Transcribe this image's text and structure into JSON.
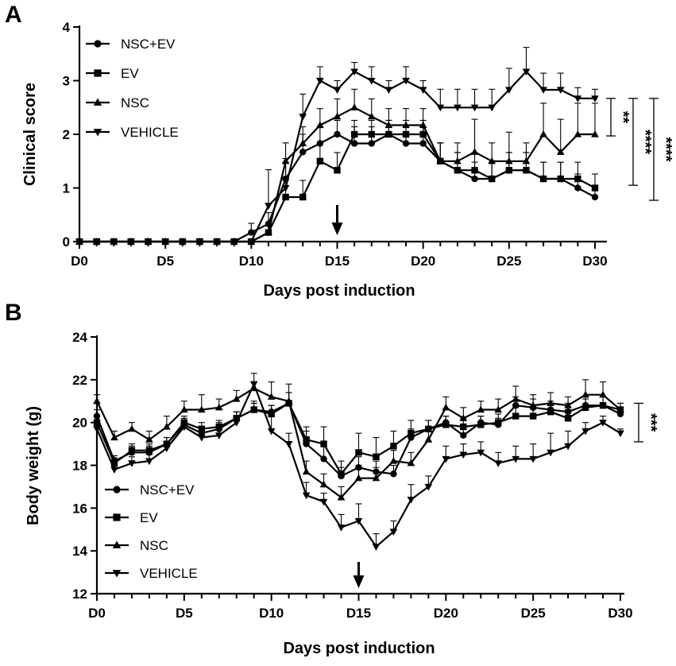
{
  "chart_data": [
    {
      "panel": "A",
      "type": "line",
      "xlabel": "Days post induction",
      "ylabel": "Clinical score",
      "xlim": [
        0,
        30
      ],
      "ylim": [
        0,
        4
      ],
      "x_ticks": [
        "D0",
        "D5",
        "D10",
        "D15",
        "D20",
        "D25",
        "D30"
      ],
      "y_ticks": [
        "0",
        "1",
        "2",
        "3",
        "4"
      ],
      "annotation": "treatment arrow at D15",
      "arrow_x": 15,
      "legend": [
        "NSC+EV",
        "EV",
        "NSC",
        "VEHICLE"
      ],
      "x": [
        0,
        1,
        2,
        3,
        4,
        5,
        6,
        7,
        8,
        9,
        10,
        11,
        12,
        13,
        14,
        15,
        16,
        17,
        18,
        19,
        20,
        21,
        22,
        23,
        24,
        25,
        26,
        27,
        28,
        29,
        30
      ],
      "series": [
        {
          "name": "NSC+EV",
          "marker": "circle",
          "values": [
            0,
            0,
            0,
            0,
            0,
            0,
            0,
            0,
            0,
            0,
            0.17,
            0.33,
            1.17,
            1.67,
            1.83,
            2.0,
            1.83,
            1.83,
            2.0,
            1.83,
            1.83,
            1.5,
            1.33,
            1.17,
            1.17,
            1.33,
            1.33,
            1.17,
            1.17,
            1.0,
            0.83
          ],
          "errors": [
            0,
            0,
            0,
            0,
            0,
            0,
            0,
            0,
            0,
            0,
            0.17,
            0.21,
            0.31,
            0.33,
            0.31,
            0.26,
            0.31,
            0.31,
            0.26,
            0.31,
            0.31,
            0.34,
            0.33,
            0.31,
            0.31,
            0.33,
            0.33,
            0.31,
            0.31,
            0.26,
            0.17
          ]
        },
        {
          "name": "EV",
          "marker": "square",
          "values": [
            0,
            0,
            0,
            0,
            0,
            0,
            0,
            0,
            0,
            0,
            0,
            0.17,
            0.83,
            0.83,
            1.5,
            1.33,
            2.0,
            2.0,
            2.0,
            2.0,
            2.0,
            1.5,
            1.33,
            1.33,
            1.17,
            1.33,
            1.33,
            1.17,
            1.17,
            1.17,
            1.0
          ],
          "errors": [
            0,
            0,
            0,
            0,
            0,
            0,
            0,
            0,
            0,
            0,
            0,
            0.17,
            0.31,
            0.31,
            0.34,
            0.33,
            0.26,
            0.26,
            0.26,
            0.26,
            0.26,
            0.34,
            0.33,
            0.33,
            0.31,
            0.33,
            0.33,
            0.31,
            0.31,
            0.31,
            0.26
          ]
        },
        {
          "name": "NSC",
          "marker": "triangle-up",
          "values": [
            0,
            0,
            0,
            0,
            0,
            0,
            0,
            0,
            0,
            0,
            0,
            0.17,
            1.5,
            1.83,
            2.17,
            2.33,
            2.5,
            2.33,
            2.17,
            2.17,
            2.17,
            1.5,
            1.5,
            1.67,
            1.5,
            1.5,
            1.5,
            2.0,
            1.67,
            2.0,
            2.0
          ],
          "errors": [
            0,
            0,
            0,
            0,
            0,
            0,
            0,
            0,
            0,
            0,
            0,
            0.17,
            0.34,
            0.31,
            0.31,
            0.33,
            0.34,
            0.33,
            0.31,
            0.31,
            0.31,
            0.34,
            0.34,
            0.61,
            0.34,
            0.54,
            0.34,
            0.58,
            0.61,
            0.58,
            0.58
          ]
        },
        {
          "name": "VEHICLE",
          "marker": "triangle-down",
          "values": [
            0,
            0,
            0,
            0,
            0,
            0,
            0,
            0,
            0,
            0,
            0,
            0.67,
            1.0,
            2.33,
            3.0,
            2.83,
            3.17,
            3.0,
            2.83,
            3.0,
            2.83,
            2.5,
            2.5,
            2.5,
            2.5,
            2.83,
            3.17,
            2.83,
            2.83,
            2.67,
            2.67
          ],
          "errors": [
            0,
            0,
            0,
            0,
            0,
            0,
            0,
            0,
            0,
            0,
            0,
            0.67,
            0.55,
            0.42,
            0.26,
            0.17,
            0.17,
            0.26,
            0.17,
            0.26,
            0.17,
            0.34,
            0.34,
            0.34,
            0.34,
            0.4,
            0.45,
            0.31,
            0.31,
            0.2,
            0.17
          ]
        }
      ],
      "significance": [
        {
          "label": "**",
          "y_top": 2.67,
          "y_bottom": 1.97
        },
        {
          "label": "****",
          "y_top": 2.67,
          "y_bottom": 1.05
        },
        {
          "label": "****",
          "y_top": 2.67,
          "y_bottom": 0.77
        }
      ]
    },
    {
      "panel": "B",
      "type": "line",
      "xlabel": "Days post induction",
      "ylabel": "Body weight (g)",
      "xlim": [
        0,
        30
      ],
      "ylim": [
        12,
        24
      ],
      "x_ticks": [
        "D0",
        "D5",
        "D10",
        "D15",
        "D20",
        "D25",
        "D30"
      ],
      "y_ticks": [
        "12",
        "14",
        "16",
        "18",
        "20",
        "22",
        "24"
      ],
      "annotation": "treatment arrow at D15",
      "arrow_x": 15,
      "legend": [
        "NSC+EV",
        "EV",
        "NSC",
        "VEHICLE"
      ],
      "x": [
        0,
        1,
        2,
        3,
        4,
        5,
        6,
        7,
        8,
        9,
        10,
        11,
        12,
        13,
        14,
        15,
        16,
        17,
        18,
        19,
        20,
        21,
        22,
        23,
        24,
        25,
        26,
        27,
        28,
        29,
        30
      ],
      "series": [
        {
          "name": "NSC+EV",
          "marker": "circle",
          "values": [
            20.3,
            18.2,
            18.6,
            18.6,
            19.0,
            19.9,
            19.5,
            19.7,
            20.2,
            20.6,
            20.5,
            20.9,
            19.0,
            18.3,
            17.5,
            17.9,
            17.7,
            17.6,
            19.3,
            19.7,
            20.0,
            19.4,
            20.0,
            19.9,
            20.8,
            20.7,
            20.6,
            20.5,
            20.8,
            20.8,
            20.4
          ],
          "errors": [
            0.3,
            0.25,
            0.3,
            0.3,
            0.3,
            0.3,
            0.3,
            0.3,
            0.3,
            0.3,
            0.3,
            0.5,
            0.6,
            0.6,
            0.4,
            0.5,
            0.5,
            0.4,
            0.4,
            0.4,
            0.3,
            0.4,
            0.3,
            0.3,
            0.4,
            0.4,
            0.4,
            0.4,
            0.4,
            0.4,
            0.3
          ]
        },
        {
          "name": "EV",
          "marker": "square",
          "values": [
            20.0,
            18.1,
            18.7,
            18.7,
            19.0,
            20.0,
            19.7,
            19.8,
            20.2,
            20.6,
            20.4,
            20.9,
            19.2,
            19.0,
            17.6,
            18.6,
            18.4,
            18.9,
            19.5,
            19.7,
            19.9,
            19.8,
            19.9,
            20.0,
            20.3,
            20.3,
            20.5,
            20.2,
            20.7,
            20.8,
            20.6
          ],
          "errors": [
            0.3,
            0.25,
            0.3,
            0.3,
            0.3,
            0.3,
            0.3,
            0.3,
            0.3,
            0.4,
            0.4,
            0.5,
            0.6,
            0.8,
            0.6,
            0.9,
            0.9,
            0.7,
            0.6,
            0.4,
            0.4,
            0.4,
            0.4,
            0.4,
            0.4,
            0.4,
            0.4,
            0.4,
            0.4,
            0.4,
            0.3
          ]
        },
        {
          "name": "NSC",
          "marker": "triangle-up",
          "values": [
            21.0,
            19.3,
            19.7,
            19.2,
            19.8,
            20.6,
            20.6,
            20.7,
            21.1,
            21.6,
            21.2,
            21.0,
            17.7,
            17.1,
            16.5,
            17.4,
            17.4,
            18.2,
            18.1,
            19.2,
            20.7,
            20.2,
            20.6,
            20.6,
            21.1,
            20.8,
            20.9,
            20.8,
            21.3,
            21.3,
            20.6
          ],
          "errors": [
            0.3,
            0.3,
            0.3,
            0.4,
            0.5,
            0.4,
            0.7,
            0.4,
            0.4,
            0.3,
            0.7,
            0.8,
            0.5,
            0.5,
            0.5,
            0.6,
            0.5,
            0.5,
            0.5,
            0.6,
            0.5,
            0.5,
            0.4,
            0.5,
            0.6,
            0.5,
            0.5,
            0.4,
            0.7,
            0.6,
            0.3
          ]
        },
        {
          "name": "VEHICLE",
          "marker": "triangle-down",
          "values": [
            19.7,
            17.8,
            18.1,
            18.2,
            18.8,
            19.8,
            19.3,
            19.4,
            20.0,
            21.8,
            19.6,
            19.0,
            16.6,
            16.3,
            15.1,
            15.4,
            14.2,
            14.9,
            16.4,
            17.0,
            18.3,
            18.5,
            18.6,
            18.1,
            18.3,
            18.3,
            18.6,
            18.9,
            19.6,
            20.0,
            19.5
          ],
          "errors": [
            0.3,
            0.3,
            0.3,
            0.3,
            0.3,
            0.3,
            0.3,
            0.3,
            0.3,
            0.5,
            0.8,
            0.5,
            0.6,
            0.4,
            0.6,
            0.8,
            0.6,
            0.5,
            0.7,
            0.5,
            0.6,
            0.5,
            0.5,
            0.5,
            0.6,
            0.7,
            0.9,
            0.7,
            0.4,
            0.3,
            0.2
          ]
        }
      ],
      "significance": [
        {
          "label": "***",
          "y_top": 20.9,
          "y_bottom": 19.1
        }
      ]
    }
  ]
}
